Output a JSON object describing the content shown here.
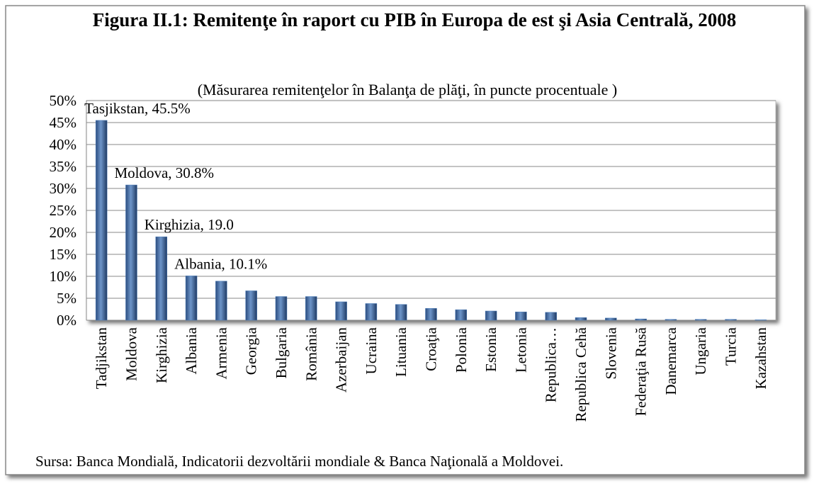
{
  "chart_data": {
    "type": "bar",
    "title": "Figura II.1: Remitenţe în raport cu PIB în Europa de est şi Asia Centrală, 2008",
    "subtitle": "(Măsurarea remitenţelor în Balanţa de plăţi, în puncte procentuale )",
    "source": "Sursa: Banca Mondială, Indicatorii dezvoltării mondiale & Banca Naţională a Moldovei.",
    "categories": [
      "Tadjikstan",
      "Moldova",
      "Kirghizia",
      "Albania",
      "Armenia",
      "Georgia",
      "Bulgaria",
      "România",
      "Azerbaijan",
      "Ucraina",
      "Lituania",
      "Croaţia",
      "Polonia",
      "Estonia",
      "Letonia",
      "Republica…",
      "Republica Cehă",
      "Slovenia",
      "Federaţia Rusă",
      "Danemarca",
      "Ungaria",
      "Turcia",
      "Kazahstan"
    ],
    "values": [
      45.5,
      30.8,
      19.0,
      10.1,
      8.9,
      6.7,
      5.4,
      5.4,
      4.2,
      3.8,
      3.6,
      2.7,
      2.4,
      2.1,
      1.9,
      1.8,
      0.6,
      0.5,
      0.3,
      0.2,
      0.2,
      0.2,
      0.1
    ],
    "value_labels": [
      "Tasjikstan, 45.5%",
      "Moldova, 30.8%",
      "Kirghizia, 19.0",
      "Albania, 10.1%",
      null,
      null,
      null,
      null,
      null,
      null,
      null,
      null,
      null,
      null,
      null,
      null,
      null,
      null,
      null,
      null,
      null,
      null,
      null
    ],
    "color": "#4f81bd",
    "ylim": [
      0,
      50
    ],
    "yticks": [
      {
        "value": 0,
        "label": "0%"
      },
      {
        "value": 5,
        "label": "5%"
      },
      {
        "value": 10,
        "label": "10%"
      },
      {
        "value": 15,
        "label": "15%"
      },
      {
        "value": 20,
        "label": "20%"
      },
      {
        "value": 25,
        "label": "25%"
      },
      {
        "value": 30,
        "label": "30%"
      },
      {
        "value": 35,
        "label": "35%"
      },
      {
        "value": 40,
        "label": "40%"
      },
      {
        "value": 45,
        "label": "45%"
      },
      {
        "value": 50,
        "label": "50%"
      }
    ],
    "grid": true
  }
}
